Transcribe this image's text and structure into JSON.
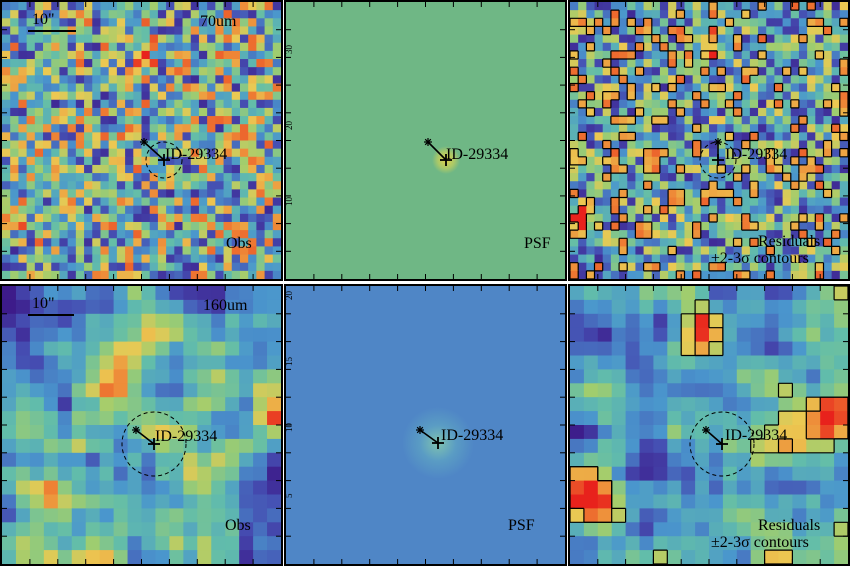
{
  "panels": [
    {
      "id": "p1",
      "kind": "obs",
      "band": "70um",
      "scale": "10\"",
      "source": "ID-29334",
      "label": "Obs"
    },
    {
      "id": "p2",
      "kind": "psf",
      "source": "ID-29334",
      "label": "PSF",
      "ticks": [
        "30",
        "20",
        "10"
      ]
    },
    {
      "id": "p3",
      "kind": "res",
      "source": "ID-29334",
      "label1": "Residuals",
      "label2": "±2-3σ contours"
    },
    {
      "id": "p4",
      "kind": "obs",
      "band": "160um",
      "scale": "10\"",
      "source": "ID-29334",
      "label": "Obs"
    },
    {
      "id": "p5",
      "kind": "psf",
      "source": "ID-29334",
      "label": "PSF",
      "ticks": [
        "20",
        "15",
        "10",
        "5"
      ]
    },
    {
      "id": "p6",
      "kind": "res",
      "source": "ID-29334",
      "label1": "Residuals",
      "label2": "±2-3σ contours"
    }
  ],
  "colors": {
    "psf_bg_top": "#6fb785",
    "psf_bg_bottom": "#4f86c6",
    "contour": "#000000"
  }
}
